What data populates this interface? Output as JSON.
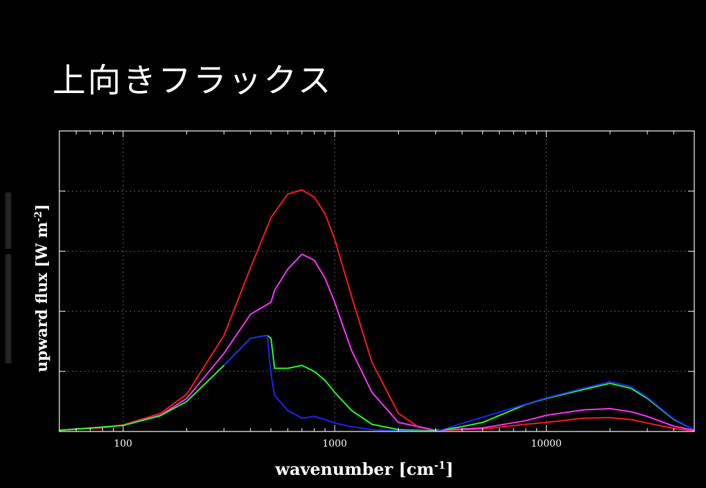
{
  "slide": {
    "title": "上向きフラックス"
  },
  "colors": {
    "background": "#000000",
    "frame": "#ffffff",
    "grid": "#777777",
    "text": "#ffffff"
  },
  "chart_data": {
    "type": "line",
    "xscale": "log",
    "xlabel": "wavenumber [cm",
    "xlabel_superscript": "-1",
    "xlabel_suffix": "]",
    "ylabel": "upward flux [W m",
    "ylabel_superscript": "-2",
    "ylabel_suffix": "]",
    "xlim": [
      50,
      50000
    ],
    "ylim": [
      0,
      5
    ],
    "xticks": [
      100,
      1000,
      10000
    ],
    "xtick_labels": [
      "100",
      "1000",
      "10000"
    ],
    "yticks": [
      1,
      2,
      3,
      4
    ],
    "ytick_labels": [],
    "grid": true,
    "legend": "none",
    "series": [
      {
        "color": "#ff1a1a",
        "x": [
          50,
          80,
          100,
          150,
          200,
          300,
          400,
          500,
          600,
          700,
          800,
          900,
          1000,
          1200,
          1500,
          2000,
          2500,
          3000,
          5000,
          8000,
          10000,
          15000,
          20000,
          25000,
          30000,
          40000,
          50000
        ],
        "y": [
          0.02,
          0.06,
          0.11,
          0.3,
          0.62,
          1.6,
          2.72,
          3.56,
          3.95,
          4.02,
          3.9,
          3.62,
          3.2,
          2.25,
          1.15,
          0.3,
          0.07,
          0.02,
          0.04,
          0.12,
          0.15,
          0.22,
          0.23,
          0.2,
          0.14,
          0.05,
          0.01
        ]
      },
      {
        "color": "#ff33ff",
        "x": [
          50,
          100,
          150,
          200,
          300,
          400,
          500,
          520,
          600,
          700,
          800,
          900,
          1000,
          1200,
          1500,
          2000,
          3000,
          5000,
          8000,
          10000,
          15000,
          20000,
          25000,
          30000,
          40000,
          50000
        ],
        "y": [
          0.02,
          0.1,
          0.27,
          0.55,
          1.3,
          1.95,
          2.15,
          2.35,
          2.7,
          2.95,
          2.85,
          2.55,
          2.15,
          1.35,
          0.65,
          0.15,
          0.02,
          0.06,
          0.18,
          0.27,
          0.36,
          0.38,
          0.33,
          0.25,
          0.09,
          0.02
        ]
      },
      {
        "color": "#22ff22",
        "x": [
          50,
          100,
          150,
          200,
          300,
          400,
          480,
          500,
          520,
          600,
          700,
          800,
          900,
          1000,
          1200,
          1500,
          2000,
          3000,
          4000,
          5000,
          8000,
          10000,
          15000,
          20000,
          25000,
          30000,
          40000,
          50000
        ],
        "y": [
          0.02,
          0.1,
          0.26,
          0.5,
          1.1,
          1.55,
          1.6,
          1.55,
          1.05,
          1.05,
          1.1,
          1.0,
          0.85,
          0.65,
          0.35,
          0.12,
          0.03,
          0.01,
          0.08,
          0.15,
          0.45,
          0.55,
          0.7,
          0.8,
          0.72,
          0.55,
          0.2,
          0.03
        ]
      },
      {
        "color": "#1a24ff",
        "x": [
          300,
          400,
          480,
          500,
          520,
          600,
          700,
          800,
          900,
          1000,
          1200,
          1500,
          2000,
          3000,
          10000,
          15000,
          20000,
          25000,
          30000,
          40000,
          50000
        ],
        "y": [
          1.1,
          1.55,
          1.6,
          0.95,
          0.6,
          0.35,
          0.22,
          0.25,
          0.2,
          0.14,
          0.08,
          0.03,
          0.01,
          0.0,
          0.56,
          0.72,
          0.83,
          0.75,
          0.57,
          0.21,
          0.03
        ]
      }
    ]
  }
}
